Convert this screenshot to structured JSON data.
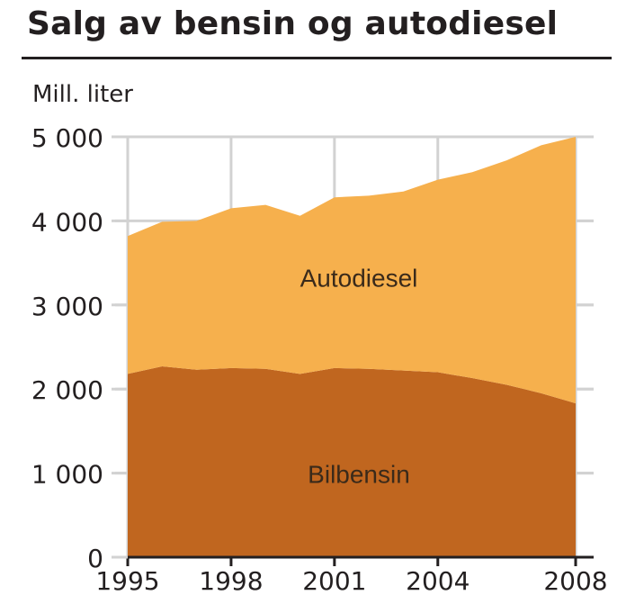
{
  "chart_data": {
    "type": "area",
    "stacked": true,
    "title": "Salg av bensin og autodiesel",
    "ylabel": "Mill. liter",
    "xlabel": "",
    "x": [
      1995,
      1996,
      1997,
      1998,
      1999,
      2000,
      2001,
      2002,
      2003,
      2004,
      2005,
      2006,
      2007,
      2008
    ],
    "ylim": [
      0,
      5000
    ],
    "xlim": [
      1995,
      2008
    ],
    "x_ticks": [
      "1995",
      "1998",
      "2001",
      "2004",
      "2008"
    ],
    "y_ticks": [
      "0",
      "1 000",
      "2 000",
      "3 000",
      "4 000",
      "5 000"
    ],
    "grid": true,
    "series": [
      {
        "name": "Bilbensin",
        "color": "#c0661f",
        "values": [
          2180,
          2270,
          2230,
          2250,
          2240,
          2180,
          2250,
          2240,
          2220,
          2200,
          2130,
          2050,
          1950,
          1830
        ]
      },
      {
        "name": "Autodiesel",
        "color": "#f6b04d",
        "values": [
          1640,
          1720,
          1770,
          1900,
          1950,
          1880,
          2030,
          2060,
          2130,
          2290,
          2450,
          2670,
          2950,
          3170
        ]
      }
    ]
  }
}
